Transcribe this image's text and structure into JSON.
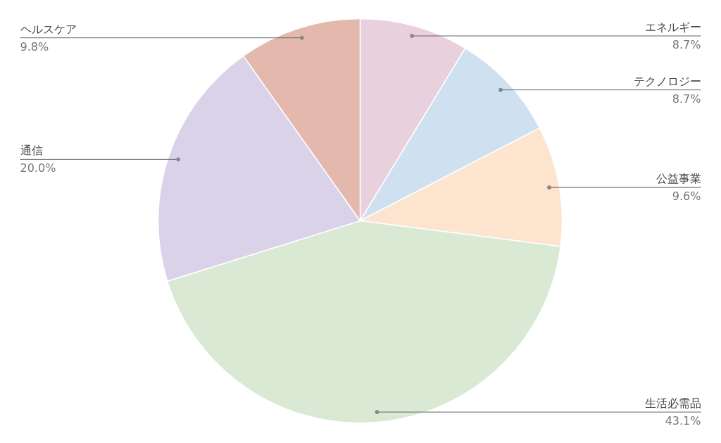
{
  "chart_data": {
    "type": "pie",
    "categories": [
      "エネルギー",
      "テクノロジー",
      "公益事業",
      "生活必需品",
      "通信",
      "ヘルスケア"
    ],
    "values": [
      8.7,
      8.7,
      9.6,
      43.1,
      20.0,
      9.8
    ],
    "colors": [
      "#e8d1dc",
      "#cfe0f1",
      "#fce4cf",
      "#d9e9d4",
      "#dad2e9",
      "#e5b8ae"
    ],
    "value_labels": [
      "8.7%",
      "8.7%",
      "9.6%",
      "43.1%",
      "20.0%",
      "9.8%"
    ]
  }
}
